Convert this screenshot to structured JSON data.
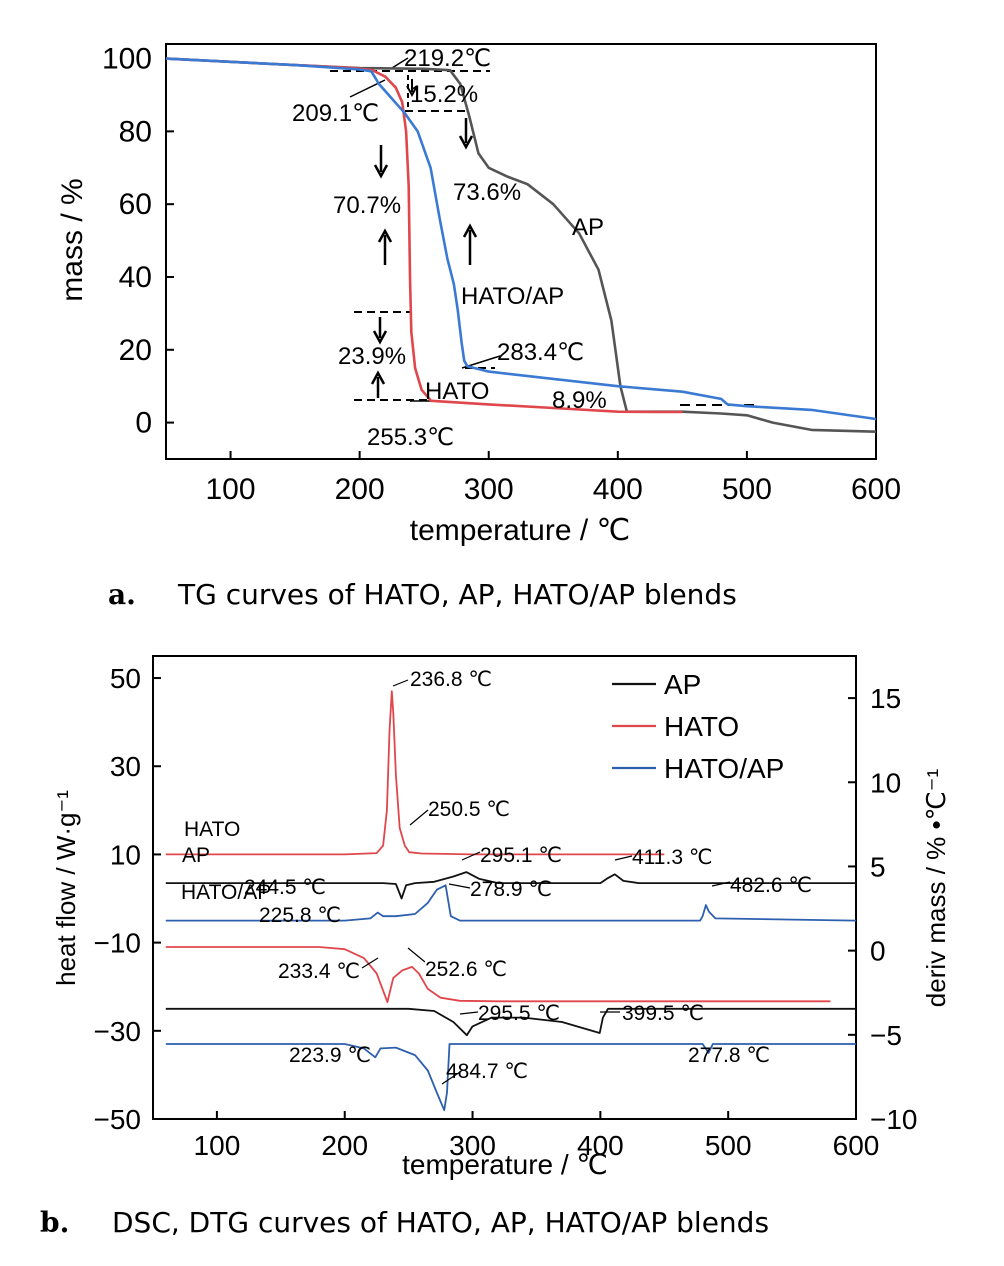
{
  "figure": {
    "caption_a": {
      "letter": "a.",
      "text": "TG curves of HATO, AP, HATO/AP blends"
    },
    "caption_b": {
      "letter": "b.",
      "text": "DSC, DTG curves of HATO, AP, HATO/AP blends"
    }
  },
  "colors": {
    "AP": "#555555",
    "HATO": "#e0474c",
    "HATO/AP": "#3a7ad3",
    "AP_b": "#111111",
    "HATO/AP_b": "#2e5fae"
  },
  "chart_data": [
    {
      "type": "line",
      "id": "tg",
      "xlabel": "temperature / ℃",
      "ylabel": "mass / %",
      "xlim": [
        50,
        600
      ],
      "ylim": [
        -10,
        104
      ],
      "xticks": [
        "100",
        "200",
        "300",
        "400",
        "500",
        "600"
      ],
      "yticks": [
        "0",
        "20",
        "40",
        "60",
        "80",
        "100"
      ],
      "series": [
        {
          "name": "AP",
          "points": [
            [
              50,
              100
            ],
            [
              150,
              98.2
            ],
            [
              200,
              97.4
            ],
            [
              250,
              97.2
            ],
            [
              270,
              96.8
            ],
            [
              278,
              93
            ],
            [
              285,
              84
            ],
            [
              292,
              74
            ],
            [
              300,
              70
            ],
            [
              315,
              67.5
            ],
            [
              330,
              65.5
            ],
            [
              350,
              60
            ],
            [
              370,
              52
            ],
            [
              385,
              42
            ],
            [
              395,
              28
            ],
            [
              402,
              10
            ],
            [
              407,
              3
            ],
            [
              450,
              3
            ],
            [
              480,
              2.5
            ],
            [
              500,
              2
            ],
            [
              520,
              0
            ],
            [
              550,
              -2
            ],
            [
              600,
              -2.5
            ]
          ]
        },
        {
          "name": "HATO",
          "points": [
            [
              50,
              100
            ],
            [
              150,
              98.2
            ],
            [
              195,
              97.4
            ],
            [
              210,
              96.8
            ],
            [
              220,
              95
            ],
            [
              228,
              92
            ],
            [
              233,
              88
            ],
            [
              236,
              80
            ],
            [
              238,
              65
            ],
            [
              239,
              40
            ],
            [
              240,
              25
            ],
            [
              243,
              15
            ],
            [
              248,
              9
            ],
            [
              255.3,
              6
            ],
            [
              300,
              5
            ],
            [
              350,
              4
            ],
            [
              400,
              3
            ],
            [
              430,
              2.9
            ],
            [
              450,
              2.9
            ]
          ]
        },
        {
          "name": "HATO/AP",
          "points": [
            [
              50,
              100
            ],
            [
              150,
              98.2
            ],
            [
              200,
              97
            ],
            [
              209,
              96.5
            ],
            [
              215,
              93
            ],
            [
              225,
              89
            ],
            [
              235,
              85
            ],
            [
              245,
              80
            ],
            [
              255,
              70
            ],
            [
              262,
              56
            ],
            [
              268,
              45
            ],
            [
              273,
              38
            ],
            [
              276,
              31
            ],
            [
              279,
              22
            ],
            [
              281,
              17
            ],
            [
              283.4,
              15.5
            ],
            [
              300,
              14
            ],
            [
              350,
              12
            ],
            [
              400,
              10
            ],
            [
              450,
              8.5
            ],
            [
              480,
              6.5
            ],
            [
              485,
              5
            ],
            [
              500,
              4.5
            ],
            [
              550,
              3.5
            ],
            [
              600,
              1
            ]
          ]
        }
      ],
      "annotations": [
        "219.2℃",
        "15.2%",
        "209.1℃",
        "70.7%",
        "73.6%",
        "AP",
        "HATO/AP",
        "283.4℃",
        "23.9%",
        "HATO",
        "8.9%",
        "255.3℃"
      ]
    },
    {
      "type": "line",
      "id": "dsc_dtg",
      "xlabel": "temperature / ℃",
      "ylabel": "heat flow / W·g⁻¹",
      "ylabel_right": "deriv mass / % •℃⁻¹",
      "xlim": [
        50,
        600
      ],
      "ylim": [
        -50,
        55
      ],
      "ylim_right": [
        -10,
        17.5
      ],
      "xticks": [
        "100",
        "200",
        "300",
        "400",
        "500",
        "600"
      ],
      "yticks": [
        "50",
        "30",
        "10",
        "−10",
        "−30",
        "−50"
      ],
      "yticks_right": [
        "15",
        "10",
        "5",
        "0",
        "−5",
        "−10"
      ],
      "legend": [
        "AP",
        "HATO",
        "HATO/AP"
      ],
      "legend_position": "top-right",
      "series": [
        {
          "name": "HATO",
          "role": "DSC",
          "points": [
            [
              60,
              10
            ],
            [
              200,
              10
            ],
            [
              225,
              10.3
            ],
            [
              230,
              12
            ],
            [
              233,
              20
            ],
            [
              235,
              38
            ],
            [
              236.8,
              47
            ],
            [
              238,
              42
            ],
            [
              240,
              28
            ],
            [
              243,
              16
            ],
            [
              247,
              12
            ],
            [
              250.5,
              10.5
            ],
            [
              260,
              10.2
            ],
            [
              300,
              10
            ],
            [
              450,
              10
            ]
          ]
        },
        {
          "name": "AP",
          "role": "DSC",
          "points": [
            [
              60,
              3.5
            ],
            [
              230,
              3.5
            ],
            [
              240,
              3.3
            ],
            [
              244.5,
              0
            ],
            [
              248,
              3
            ],
            [
              255,
              3.5
            ],
            [
              270,
              3.8
            ],
            [
              285,
              5
            ],
            [
              295.1,
              6
            ],
            [
              305,
              4.5
            ],
            [
              320,
              3.5
            ],
            [
              400,
              3.5
            ],
            [
              405,
              4.5
            ],
            [
              411.3,
              5.5
            ],
            [
              418,
              4
            ],
            [
              430,
              3.5
            ],
            [
              600,
              3.5
            ]
          ]
        },
        {
          "name": "HATO/AP",
          "role": "DSC",
          "points": [
            [
              60,
              -5
            ],
            [
              200,
              -5
            ],
            [
              220,
              -4.5
            ],
            [
              225.8,
              -3.2
            ],
            [
              230,
              -4
            ],
            [
              240,
              -4
            ],
            [
              255,
              -3.5
            ],
            [
              265,
              -1
            ],
            [
              272,
              2
            ],
            [
              278.9,
              3
            ],
            [
              283,
              -4
            ],
            [
              290,
              -5
            ],
            [
              478,
              -5
            ],
            [
              480,
              -4
            ],
            [
              482.6,
              -1.5
            ],
            [
              485,
              -3
            ],
            [
              490,
              -4.5
            ],
            [
              600,
              -5
            ]
          ]
        },
        {
          "name": "HATO",
          "role": "DTG",
          "points": [
            [
              60,
              -11
            ],
            [
              180,
              -11
            ],
            [
              200,
              -11.5
            ],
            [
              215,
              -13.5
            ],
            [
              225,
              -17
            ],
            [
              233.4,
              -23.5
            ],
            [
              238,
              -18
            ],
            [
              245,
              -16.3
            ],
            [
              252.6,
              -15.5
            ],
            [
              258,
              -17
            ],
            [
              265,
              -20.5
            ],
            [
              275,
              -22.5
            ],
            [
              290,
              -23.2
            ],
            [
              320,
              -23.3
            ],
            [
              580,
              -23.3
            ]
          ]
        },
        {
          "name": "AP",
          "role": "DTG",
          "points": [
            [
              60,
              -25
            ],
            [
              250,
              -25
            ],
            [
              270,
              -25.5
            ],
            [
              285,
              -28
            ],
            [
              295.5,
              -31
            ],
            [
              300,
              -29
            ],
            [
              315,
              -27
            ],
            [
              340,
              -27
            ],
            [
              370,
              -28
            ],
            [
              399.5,
              -30.5
            ],
            [
              402,
              -27
            ],
            [
              406,
              -25
            ],
            [
              450,
              -25
            ],
            [
              500,
              -25
            ],
            [
              600,
              -25
            ]
          ]
        },
        {
          "name": "HATO/AP",
          "role": "DTG",
          "points": [
            [
              60,
              -33
            ],
            [
              200,
              -33
            ],
            [
              215,
              -34
            ],
            [
              223.9,
              -36
            ],
            [
              228,
              -34
            ],
            [
              240,
              -33.8
            ],
            [
              255,
              -35.5
            ],
            [
              265,
              -39
            ],
            [
              272,
              -44
            ],
            [
              277.8,
              -48
            ],
            [
              280,
              -44
            ],
            [
              282,
              -33
            ],
            [
              300,
              -33
            ],
            [
              480,
              -33
            ],
            [
              484.7,
              -35
            ],
            [
              488,
              -33
            ],
            [
              600,
              -33
            ]
          ]
        }
      ],
      "annotations": [
        "236.8 ℃",
        "250.5 ℃",
        "295.1 ℃",
        "411.3 ℃",
        "244.5 ℃",
        "278.9 ℃",
        "482.6 ℃",
        "225.8 ℃",
        "233.4 ℃",
        "252.6 ℃",
        "295.5 ℃",
        "399.5 ℃",
        "223.9 ℃",
        "277.8 ℃",
        "484.7 ℃"
      ],
      "curve_labels": [
        "HATO",
        "AP",
        "HATO/AP"
      ]
    }
  ]
}
